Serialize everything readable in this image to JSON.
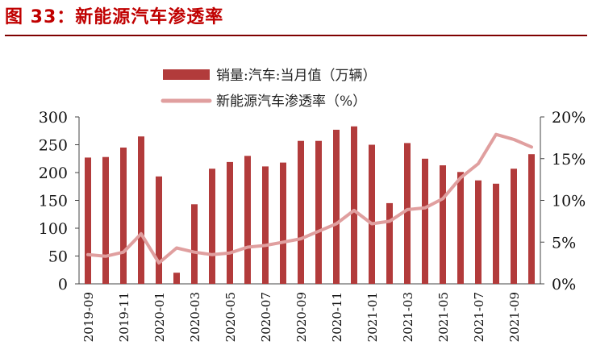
{
  "figure_title": "图 33：新能源汽车渗透率",
  "chart_data": {
    "type": "bar+line",
    "title": "图 33：新能源汽车渗透率",
    "categories": [
      "2019-09",
      "2019-10",
      "2019-11",
      "2019-12",
      "2020-01",
      "2020-02",
      "2020-03",
      "2020-04",
      "2020-05",
      "2020-06",
      "2020-07",
      "2020-08",
      "2020-09",
      "2020-10",
      "2020-11",
      "2020-12",
      "2021-01",
      "2021-02",
      "2021-03",
      "2021-04",
      "2021-05",
      "2021-06",
      "2021-07",
      "2021-08",
      "2021-09",
      "2021-10"
    ],
    "x_tick_labels": [
      "2019-09",
      "2019-11",
      "2020-01",
      "2020-03",
      "2020-05",
      "2020-07",
      "2020-09",
      "2020-11",
      "2021-01",
      "2021-03",
      "2021-05",
      "2021-07",
      "2021-09"
    ],
    "series": [
      {
        "name": "销量:汽车:当月值（万辆）",
        "type": "bar",
        "axis": "left",
        "color": "#b23b3b",
        "values": [
          227,
          228,
          245,
          265,
          193,
          20,
          143,
          207,
          219,
          230,
          211,
          218,
          257,
          257,
          277,
          283,
          250,
          145,
          253,
          225,
          213,
          201,
          186,
          180,
          207,
          233
        ]
      },
      {
        "name": "新能源汽车渗透率（%）",
        "type": "line",
        "axis": "right",
        "color": "#e09f9f",
        "values": [
          3.5,
          3.3,
          3.8,
          6.0,
          2.5,
          4.3,
          3.8,
          3.5,
          3.7,
          4.4,
          4.6,
          5.0,
          5.4,
          6.3,
          7.2,
          8.8,
          7.2,
          7.5,
          8.9,
          9.1,
          10.2,
          12.7,
          14.4,
          17.9,
          17.3,
          16.4
        ]
      }
    ],
    "y_left": {
      "min": 0,
      "max": 300,
      "ticks": [
        "0",
        "50",
        "100",
        "150",
        "200",
        "250",
        "300"
      ]
    },
    "y_right": {
      "min": 0,
      "max": 20,
      "ticks": [
        "0%",
        "5%",
        "10%",
        "15%",
        "20%"
      ]
    },
    "legend": {
      "position": "top-center",
      "entries": [
        "销量:汽车:当月值（万辆）",
        "新能源汽车渗透率（%）"
      ]
    }
  }
}
